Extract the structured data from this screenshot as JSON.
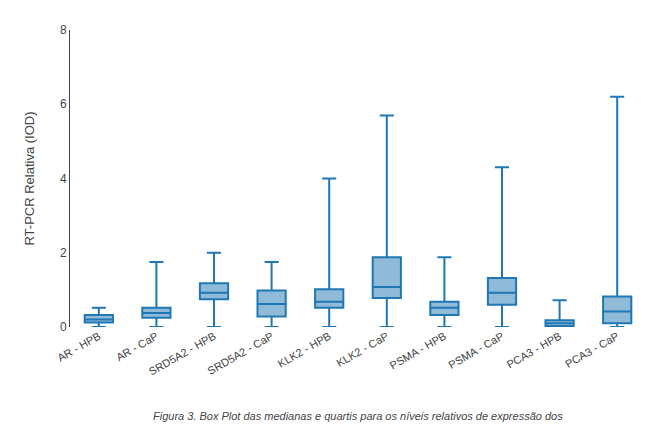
{
  "chart_data": {
    "type": "box",
    "categories": [
      "AR - HPB",
      "AR - CaP",
      "SRD5A2 - HPB",
      "SRD5A2 - CaP",
      "KLK2 - HPB",
      "KLK2 - CaP",
      "PSMA - HPB",
      "PSMA - CaP",
      "PCA3 - HPB",
      "PCA3 - CaP"
    ],
    "lower_whisker": [
      0.0,
      0.0,
      0.0,
      0.0,
      0.0,
      0.0,
      0.0,
      0.0,
      0.0,
      0.0
    ],
    "q1": [
      0.12,
      0.25,
      0.75,
      0.28,
      0.52,
      0.78,
      0.32,
      0.6,
      0.03,
      0.1
    ],
    "median": [
      0.2,
      0.38,
      0.92,
      0.62,
      0.68,
      1.08,
      0.52,
      0.92,
      0.1,
      0.42
    ],
    "q3": [
      0.32,
      0.52,
      1.18,
      0.98,
      1.02,
      1.88,
      0.68,
      1.32,
      0.18,
      0.82
    ],
    "upper_whisker": [
      0.52,
      1.75,
      2.0,
      1.75,
      4.0,
      5.7,
      1.88,
      4.3,
      0.72,
      6.2
    ],
    "ylabel": "RT-PCR Relativa (IOD)",
    "ylim": [
      0,
      8
    ],
    "yticks": [
      0,
      2,
      4,
      6,
      8
    ],
    "grid": false,
    "caption": "Figura 3. Box Plot das medianas e quartis para os níveis relativos de expressão dos"
  }
}
